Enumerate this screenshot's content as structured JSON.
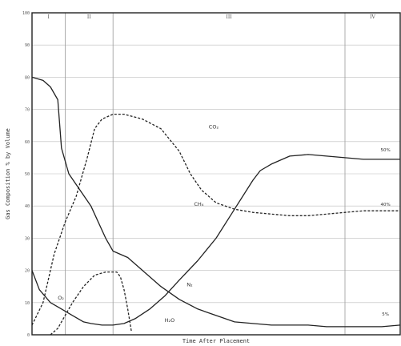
{
  "chart_data": {
    "type": "line",
    "title": "",
    "xlabel": "Time After Placement",
    "ylabel": "Gas Composition % by Volume",
    "xlim": [
      0,
      100
    ],
    "ylim": [
      0,
      100
    ],
    "y_ticks": [
      "0",
      "10",
      "20",
      "30",
      "40",
      "50",
      "60",
      "70",
      "80",
      "90",
      "100"
    ],
    "grid": true,
    "phases": [
      {
        "label": "I",
        "start": 0,
        "end": 9
      },
      {
        "label": "II",
        "start": 9,
        "end": 22
      },
      {
        "label": "III",
        "start": 22,
        "end": 85
      },
      {
        "label": "IV",
        "start": 85,
        "end": 100
      }
    ],
    "series": [
      {
        "name": "N2",
        "label": "N₂",
        "style": "solid",
        "label_pos": [
          42,
          15
        ],
        "x": [
          0,
          3,
          5,
          7,
          8,
          9,
          10,
          13,
          16,
          20,
          22,
          26,
          30,
          35,
          40,
          45,
          50,
          55,
          60,
          65,
          70,
          75,
          80,
          85,
          90,
          95,
          100
        ],
        "y": [
          80,
          79,
          77,
          73,
          58,
          54,
          50,
          45,
          40,
          30,
          26,
          24,
          20,
          15,
          11,
          8,
          6,
          4,
          3.5,
          3,
          3,
          3,
          2.5,
          2.5,
          2.5,
          2.5,
          3
        ]
      },
      {
        "name": "O2",
        "label": "O₂",
        "style": "solid",
        "label_pos": [
          7,
          11
        ],
        "x": [
          0,
          2,
          5,
          8,
          11,
          14,
          16,
          19,
          22,
          25,
          28,
          32,
          36,
          40,
          45,
          50,
          55,
          60,
          62,
          65,
          70,
          75,
          80,
          85,
          90,
          95,
          100
        ],
        "y": [
          20,
          14,
          10,
          8,
          6,
          4,
          3.5,
          3,
          3,
          3.5,
          5,
          8,
          12,
          17,
          23,
          30,
          39,
          48,
          51,
          53,
          55.5,
          56,
          55.5,
          55,
          54.5,
          54.5,
          54.5
        ]
      },
      {
        "name": "CO2",
        "label": "CO₂",
        "style": "dashed",
        "label_pos": [
          48,
          64
        ],
        "x": [
          0,
          3,
          6,
          9,
          12,
          15,
          17,
          19,
          22,
          25,
          30,
          35,
          40,
          43,
          46,
          50,
          55,
          60,
          65,
          70,
          75,
          80,
          85,
          90,
          95,
          100
        ],
        "y": [
          3,
          10,
          25,
          35,
          43,
          55,
          64,
          67,
          68.5,
          68.5,
          67,
          64,
          57,
          50,
          45,
          41,
          39,
          38,
          37.5,
          37,
          37,
          37.5,
          38,
          38.5,
          38.5,
          38.5
        ]
      },
      {
        "name": "H2O",
        "label": "H₂O",
        "style": "dashed",
        "label_pos": [
          36,
          4
        ],
        "x": [
          5,
          7,
          9,
          11,
          14,
          17,
          20,
          23,
          24,
          25,
          26,
          27
        ],
        "y": [
          0,
          2,
          6,
          10,
          15,
          18.5,
          19.5,
          19.5,
          18,
          14,
          8,
          1
        ]
      },
      {
        "name": "CH4",
        "label": "CH₄",
        "style": "solid",
        "label_pos": [
          44,
          40
        ],
        "x": [],
        "y": []
      }
    ],
    "end_labels": [
      {
        "text": "50%",
        "x": 96,
        "y": 57
      },
      {
        "text": "40%",
        "x": 96,
        "y": 40
      },
      {
        "text": "5%",
        "x": 96,
        "y": 6
      }
    ]
  }
}
